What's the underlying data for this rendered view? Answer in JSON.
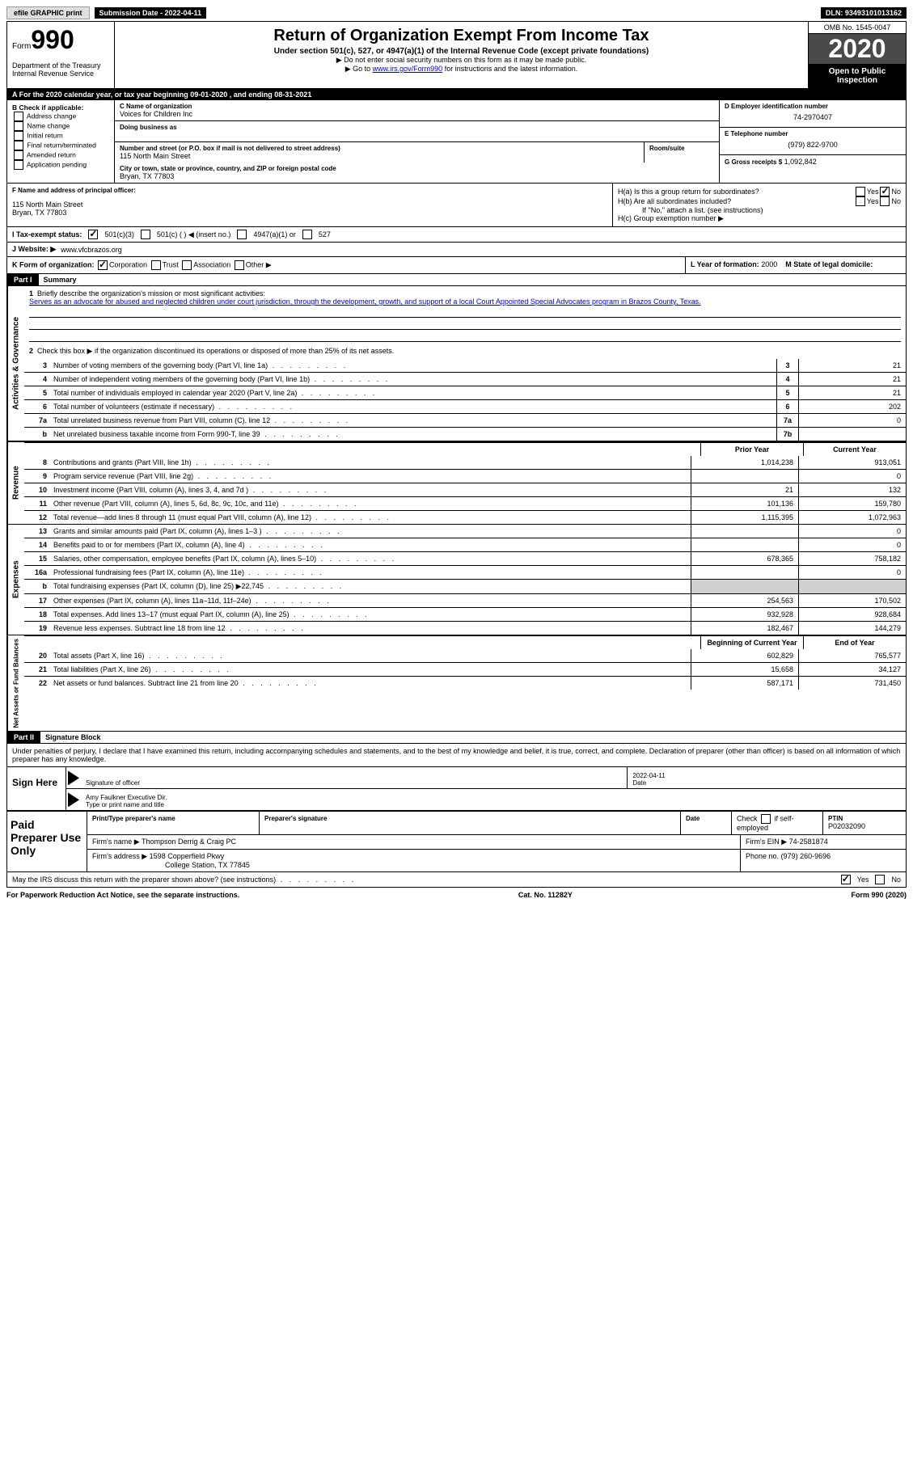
{
  "topbar": {
    "efile_label": "efile GRAPHIC print",
    "submission_label": "Submission Date - 2022-04-11",
    "dln_label": "DLN: 93493101013162"
  },
  "header": {
    "form_prefix": "Form",
    "form_number": "990",
    "dept": "Department of the Treasury",
    "irs": "Internal Revenue Service",
    "title": "Return of Organization Exempt From Income Tax",
    "subtitle": "Under section 501(c), 527, or 4947(a)(1) of the Internal Revenue Code (except private foundations)",
    "note1": "▶ Do not enter social security numbers on this form as it may be made public.",
    "note2_pre": "▶ Go to ",
    "note2_link": "www.irs.gov/Form990",
    "note2_post": " for instructions and the latest information.",
    "omb": "OMB No. 1545-0047",
    "year": "2020",
    "inspection": "Open to Public Inspection"
  },
  "tax_year": "A For the 2020 calendar year, or tax year beginning 09-01-2020   , and ending 08-31-2021",
  "section_b": {
    "heading": "B Check if applicable:",
    "items": [
      "Address change",
      "Name change",
      "Initial return",
      "Final return/terminated",
      "Amended return",
      "Application pending"
    ]
  },
  "section_c": {
    "name_label": "C Name of organization",
    "name": "Voices for Children Inc",
    "dba_label": "Doing business as",
    "addr_label": "Number and street (or P.O. box if mail is not delivered to street address)",
    "addr": "115 North Main Street",
    "room_label": "Room/suite",
    "city_label": "City or town, state or province, country, and ZIP or foreign postal code",
    "city": "Bryan, TX  77803"
  },
  "section_d": {
    "ein_label": "D Employer identification number",
    "ein": "74-2970407",
    "phone_label": "E Telephone number",
    "phone": "(979) 822-9700",
    "gross_label": "G Gross receipts $",
    "gross": "1,092,842"
  },
  "section_f": {
    "label": "F Name and address of principal officer:",
    "addr1": "115 North Main Street",
    "addr2": "Bryan, TX  77803"
  },
  "section_h": {
    "a_label": "H(a)  Is this a group return for subordinates?",
    "b_label": "H(b)  Are all subordinates included?",
    "b_note": "If \"No,\" attach a list. (see instructions)",
    "c_label": "H(c)  Group exemption number ▶",
    "yes": "Yes",
    "no": "No"
  },
  "row_i": {
    "label": "I   Tax-exempt status:",
    "opts": [
      "501(c)(3)",
      "501(c) (   ) ◀ (insert no.)",
      "4947(a)(1) or",
      "527"
    ]
  },
  "row_j": {
    "label": "J   Website: ▶",
    "value": "www.vfcbrazos.org"
  },
  "row_k": {
    "label": "K Form of organization:",
    "opts": [
      "Corporation",
      "Trust",
      "Association",
      "Other ▶"
    ]
  },
  "row_lm": {
    "l_label": "L Year of formation:",
    "l_val": "2000",
    "m_label": "M State of legal domicile:"
  },
  "part1": {
    "header": "Part I",
    "title": "Summary",
    "q1": "Briefly describe the organization's mission or most significant activities:",
    "mission": "Serves as an advocate for abused and neglected children under court jurisdiction, through the development, growth, and support of a local Court Appointed Special Advocates program in Brazos County, Texas.",
    "q2": "Check this box ▶     if the organization discontinued its operations or disposed of more than 25% of its net assets.",
    "prior_year": "Prior Year",
    "current_year": "Current Year",
    "beg_year": "Beginning of Current Year",
    "end_year": "End of Year"
  },
  "side_labels": {
    "gov": "Activities & Governance",
    "rev": "Revenue",
    "exp": "Expenses",
    "net": "Net Assets or Fund Balances"
  },
  "lines_single": [
    {
      "n": "3",
      "t": "Number of voting members of the governing body (Part VI, line 1a)",
      "box": "3",
      "v": "21"
    },
    {
      "n": "4",
      "t": "Number of independent voting members of the governing body (Part VI, line 1b)",
      "box": "4",
      "v": "21"
    },
    {
      "n": "5",
      "t": "Total number of individuals employed in calendar year 2020 (Part V, line 2a)",
      "box": "5",
      "v": "21"
    },
    {
      "n": "6",
      "t": "Total number of volunteers (estimate if necessary)",
      "box": "6",
      "v": "202"
    },
    {
      "n": "7a",
      "t": "Total unrelated business revenue from Part VIII, column (C), line 12",
      "box": "7a",
      "v": "0"
    },
    {
      "n": "b",
      "t": "Net unrelated business taxable income from Form 990-T, line 39",
      "box": "7b",
      "v": ""
    }
  ],
  "lines_rev": [
    {
      "n": "8",
      "t": "Contributions and grants (Part VIII, line 1h)",
      "p": "1,014,238",
      "c": "913,051"
    },
    {
      "n": "9",
      "t": "Program service revenue (Part VIII, line 2g)",
      "p": "",
      "c": "0"
    },
    {
      "n": "10",
      "t": "Investment income (Part VIII, column (A), lines 3, 4, and 7d )",
      "p": "21",
      "c": "132"
    },
    {
      "n": "11",
      "t": "Other revenue (Part VIII, column (A), lines 5, 6d, 8c, 9c, 10c, and 11e)",
      "p": "101,136",
      "c": "159,780"
    },
    {
      "n": "12",
      "t": "Total revenue—add lines 8 through 11 (must equal Part VIII, column (A), line 12)",
      "p": "1,115,395",
      "c": "1,072,963"
    }
  ],
  "lines_exp": [
    {
      "n": "13",
      "t": "Grants and similar amounts paid (Part IX, column (A), lines 1–3 )",
      "p": "",
      "c": "0"
    },
    {
      "n": "14",
      "t": "Benefits paid to or for members (Part IX, column (A), line 4)",
      "p": "",
      "c": "0"
    },
    {
      "n": "15",
      "t": "Salaries, other compensation, employee benefits (Part IX, column (A), lines 5–10)",
      "p": "678,365",
      "c": "758,182"
    },
    {
      "n": "16a",
      "t": "Professional fundraising fees (Part IX, column (A), line 11e)",
      "p": "",
      "c": "0"
    },
    {
      "n": "b",
      "t": "Total fundraising expenses (Part IX, column (D), line 25) ▶22,745",
      "p": "shade",
      "c": "shade"
    },
    {
      "n": "17",
      "t": "Other expenses (Part IX, column (A), lines 11a–11d, 11f–24e)",
      "p": "254,563",
      "c": "170,502"
    },
    {
      "n": "18",
      "t": "Total expenses. Add lines 13–17 (must equal Part IX, column (A), line 25)",
      "p": "932,928",
      "c": "928,684"
    },
    {
      "n": "19",
      "t": "Revenue less expenses. Subtract line 18 from line 12",
      "p": "182,467",
      "c": "144,279"
    }
  ],
  "lines_net": [
    {
      "n": "20",
      "t": "Total assets (Part X, line 16)",
      "p": "602,829",
      "c": "765,577"
    },
    {
      "n": "21",
      "t": "Total liabilities (Part X, line 26)",
      "p": "15,658",
      "c": "34,127"
    },
    {
      "n": "22",
      "t": "Net assets or fund balances. Subtract line 21 from line 20",
      "p": "587,171",
      "c": "731,450"
    }
  ],
  "part2": {
    "header": "Part II",
    "title": "Signature Block",
    "perjury": "Under penalties of perjury, I declare that I have examined this return, including accompanying schedules and statements, and to the best of my knowledge and belief, it is true, correct, and complete. Declaration of preparer (other than officer) is based on all information of which preparer has any knowledge."
  },
  "sign": {
    "here": "Sign Here",
    "sig_label": "Signature of officer",
    "date_label": "Date",
    "date_val": "2022-04-11",
    "name_label": "Type or print name and title",
    "name_val": "Amy Faulkner Executive Dir."
  },
  "prep": {
    "title": "Paid Preparer Use Only",
    "h1": "Print/Type preparer's name",
    "h2": "Preparer's signature",
    "h3": "Date",
    "h4_pre": "Check",
    "h4_post": "if self-employed",
    "h5": "PTIN",
    "ptin": "P02032090",
    "firm_name_label": "Firm's name     ▶",
    "firm_name": "Thompson Derrig & Craig PC",
    "firm_ein_label": "Firm's EIN ▶",
    "firm_ein": "74-2581874",
    "firm_addr_label": "Firm's address ▶",
    "firm_addr1": "1598 Copperfield Pkwy",
    "firm_addr2": "College Station, TX  77845",
    "phone_label": "Phone no.",
    "phone": "(979) 260-9696"
  },
  "discuss": {
    "text": "May the IRS discuss this return with the preparer shown above? (see instructions)",
    "yes": "Yes",
    "no": "No"
  },
  "footer": {
    "left": "For Paperwork Reduction Act Notice, see the separate instructions.",
    "center": "Cat. No. 11282Y",
    "right": "Form 990 (2020)"
  }
}
